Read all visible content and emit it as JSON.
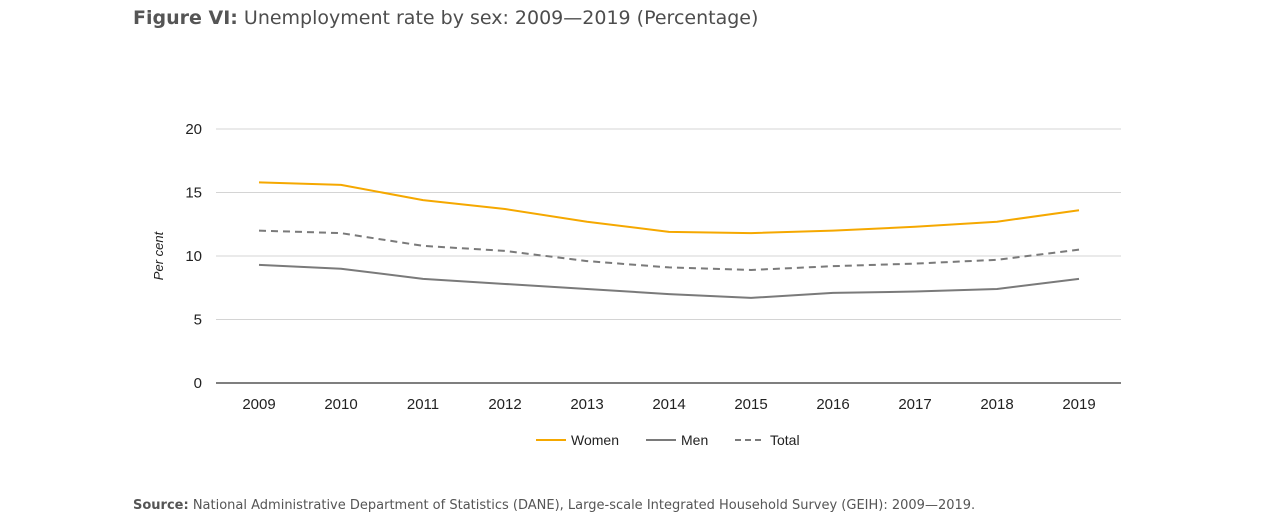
{
  "figure": {
    "title_prefix": "Figure VI:",
    "title_text": " Unemployment rate by sex: 2009—2019 (Percentage)",
    "source_prefix": "Source:",
    "source_text": " National Administrative Department of Statistics (DANE), Large-scale Integrated Household Survey (GEIH): 2009—2019."
  },
  "chart_data": {
    "type": "line",
    "ylabel": "Per cent",
    "xlabel": "",
    "ylim": [
      0,
      20
    ],
    "yticks": [
      "0",
      "5",
      "10",
      "15",
      "20"
    ],
    "categories": [
      "2009",
      "2010",
      "2011",
      "2012",
      "2013",
      "2014",
      "2015",
      "2016",
      "2017",
      "2018",
      "2019"
    ],
    "grid": true,
    "legend_position": "bottom-center",
    "series": [
      {
        "name": "Women",
        "color": "#f5a800",
        "dash": false,
        "values": [
          15.8,
          15.6,
          14.4,
          13.7,
          12.7,
          11.9,
          11.8,
          12.0,
          12.3,
          12.7,
          13.6
        ]
      },
      {
        "name": "Men",
        "color": "#7a7a7a",
        "dash": false,
        "values": [
          9.3,
          9.0,
          8.2,
          7.8,
          7.4,
          7.0,
          6.7,
          7.1,
          7.2,
          7.4,
          8.2
        ]
      },
      {
        "name": "Total",
        "color": "#7a7a7a",
        "dash": true,
        "values": [
          12.0,
          11.8,
          10.8,
          10.4,
          9.6,
          9.1,
          8.9,
          9.2,
          9.4,
          9.7,
          10.5
        ]
      }
    ]
  }
}
